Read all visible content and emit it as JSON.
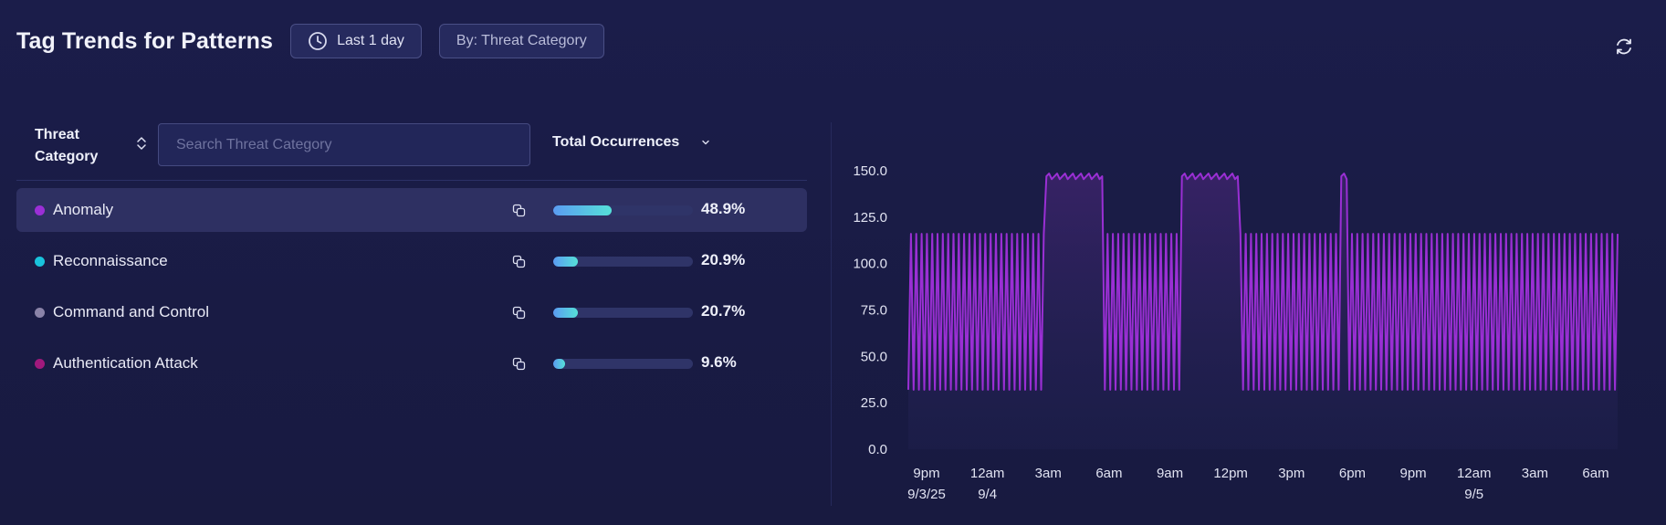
{
  "header": {
    "title": "Tag Trends for Patterns",
    "time_range": "Last 1 day",
    "group_by": "By: Threat Category"
  },
  "table": {
    "category_header": "Threat Category",
    "search_placeholder": "Search Threat Category",
    "occurrences_header": "Total Occurrences",
    "rows": [
      {
        "label": "Anomaly",
        "dot_color": "#9b2fd6",
        "percent": "48.9%",
        "fraction": 0.489,
        "selected": true
      },
      {
        "label": "Reconnaissance",
        "dot_color": "#19c3dc",
        "percent": "20.9%",
        "fraction": 0.209,
        "selected": false
      },
      {
        "label": "Command and Control",
        "dot_color": "#8a83a8",
        "percent": "20.7%",
        "fraction": 0.207,
        "selected": false
      },
      {
        "label": "Authentication Attack",
        "dot_color": "#a0197c",
        "percent": "9.6%",
        "fraction": 0.096,
        "selected": false
      }
    ]
  },
  "colors": {
    "series_line": "#9a2fd4",
    "bar_gradient_start": "#5b9cf2",
    "bar_gradient_end": "#55e0d8"
  },
  "icons": {
    "time_range": "clock-icon",
    "refresh": "refresh-icon",
    "sort": "sort-icon",
    "copy": "copy-icon",
    "dropdown": "chevron-down-icon"
  },
  "chart_data": {
    "type": "line",
    "yticks": [
      "150.0",
      "125.0",
      "100.0",
      "75.0",
      "50.0",
      "25.0",
      "0.0"
    ],
    "ylim": [
      0,
      150
    ],
    "xticks": [
      {
        "line1": "9pm",
        "line2": "9/3/25"
      },
      {
        "line1": "12am",
        "line2": "9/4"
      },
      {
        "line1": "3am",
        "line2": ""
      },
      {
        "line1": "6am",
        "line2": ""
      },
      {
        "line1": "9am",
        "line2": ""
      },
      {
        "line1": "12pm",
        "line2": ""
      },
      {
        "line1": "3pm",
        "line2": ""
      },
      {
        "line1": "6pm",
        "line2": ""
      },
      {
        "line1": "9pm",
        "line2": ""
      },
      {
        "line1": "12am",
        "line2": "9/5"
      },
      {
        "line1": "3am",
        "line2": ""
      },
      {
        "line1": "6am",
        "line2": ""
      }
    ],
    "series": [
      {
        "values": [
          32,
          116,
          32,
          116,
          32,
          116,
          32,
          116,
          32,
          116,
          32,
          116,
          32,
          116,
          32,
          116,
          32,
          116,
          32,
          116,
          32,
          116,
          32,
          116,
          32,
          116,
          32,
          116,
          32,
          116,
          32,
          116,
          32,
          116,
          32,
          116,
          32,
          116,
          32,
          116,
          32,
          116,
          32,
          116,
          32,
          116,
          32,
          116,
          32,
          116,
          32,
          116,
          32,
          116,
          32,
          116,
          32,
          116,
          32,
          116,
          32,
          116,
          32,
          116,
          32,
          116,
          32,
          116,
          32,
          116,
          32,
          116,
          32,
          116,
          32,
          116,
          32,
          116,
          32,
          116,
          32,
          116,
          32,
          116,
          32,
          116,
          32,
          116,
          32,
          116,
          32,
          116,
          32,
          116,
          32,
          116,
          32,
          116,
          32,
          116,
          32,
          116,
          32,
          116,
          32,
          116,
          32,
          116,
          32,
          116,
          32,
          116,
          32,
          116,
          32,
          116,
          32,
          116,
          32,
          116,
          32,
          116,
          32,
          116,
          32,
          116,
          32,
          116,
          32,
          116,
          32,
          116,
          32,
          116,
          32,
          116,
          32,
          116,
          32,
          116,
          32,
          116,
          32,
          116,
          32,
          116,
          32,
          116,
          32,
          116,
          32,
          116,
          32,
          116,
          32,
          116,
          32,
          116,
          32,
          116,
          32,
          116,
          32,
          116,
          32,
          116,
          32,
          116,
          32,
          116,
          32,
          116,
          32,
          116,
          32,
          116,
          32,
          116,
          32,
          116,
          32,
          116,
          32,
          116,
          32,
          116,
          32,
          116,
          32,
          116,
          32,
          116,
          32,
          116,
          32,
          116,
          32,
          116,
          32,
          116,
          32,
          116,
          32,
          116,
          32,
          116,
          32,
          116,
          32,
          116,
          32,
          116,
          32,
          116,
          32,
          116,
          32,
          116,
          32,
          116,
          32,
          116,
          32,
          116,
          32,
          116,
          32,
          116,
          32,
          116,
          32,
          116,
          32,
          116,
          32,
          116,
          32,
          116,
          32,
          116,
          32,
          116,
          32,
          116,
          32,
          116,
          32,
          116,
          32,
          116,
          32,
          116,
          32,
          116,
          32,
          116,
          32,
          116,
          32,
          116,
          32,
          116,
          32,
          116,
          32,
          116,
          32,
          116
        ]
      }
    ]
  }
}
